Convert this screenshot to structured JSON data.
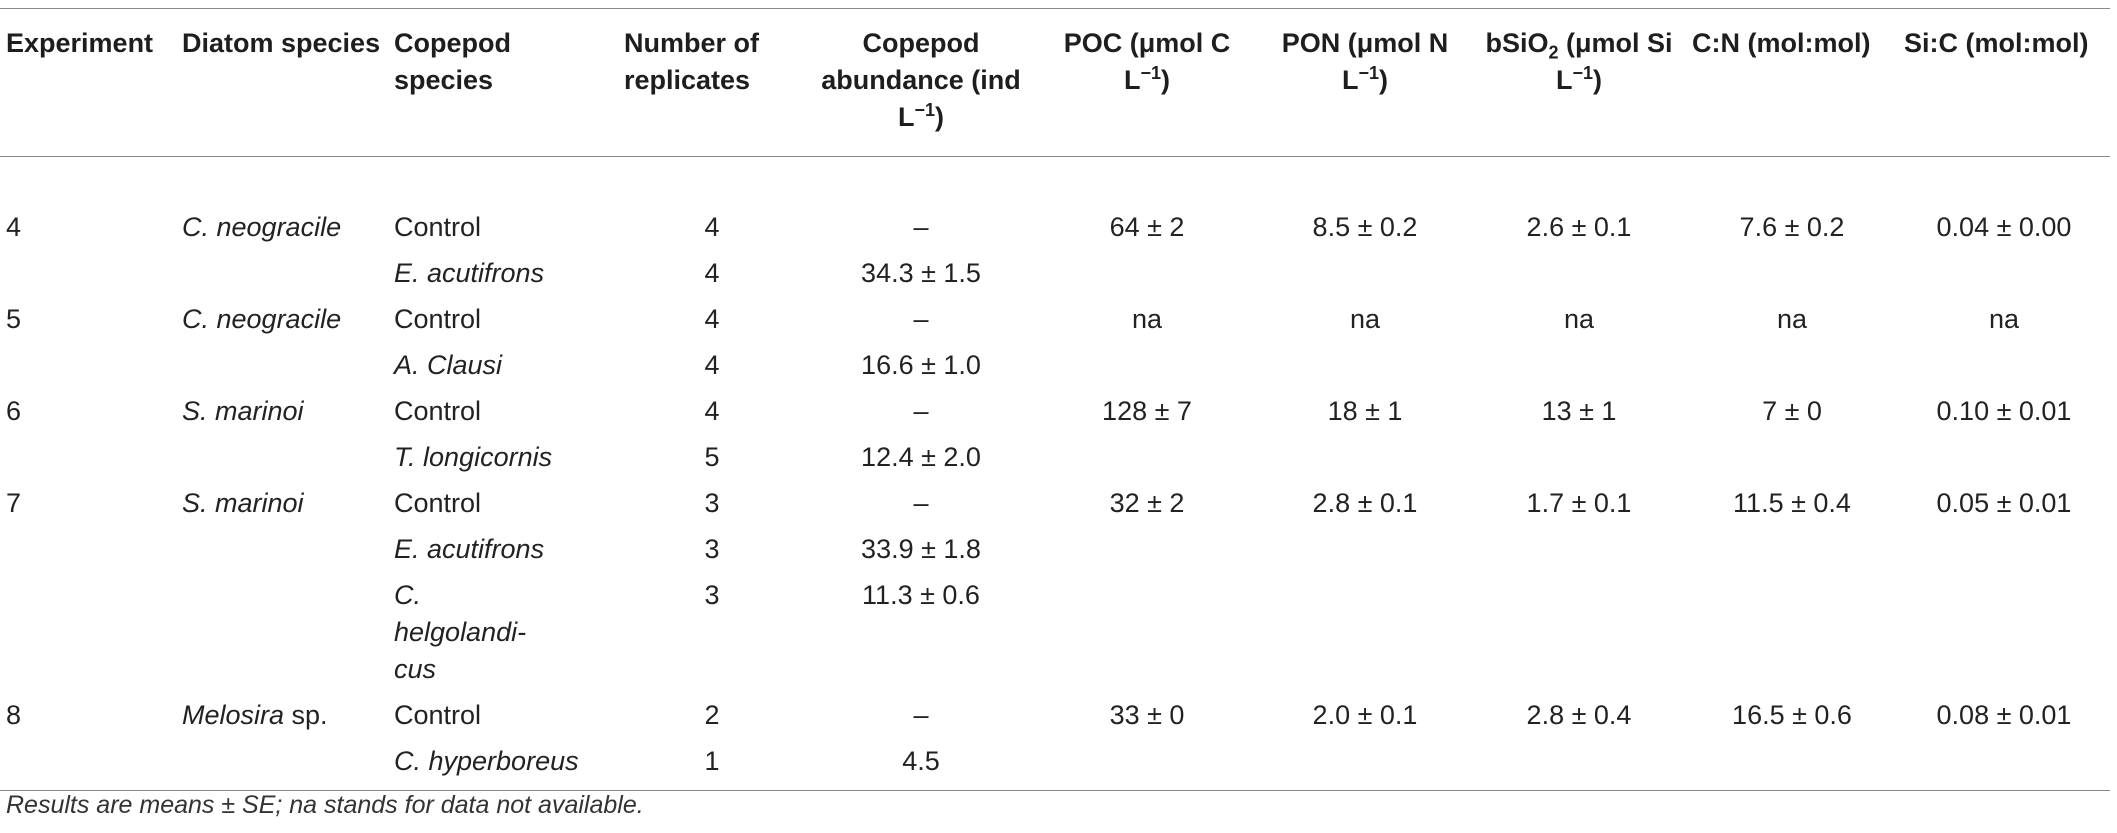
{
  "headers": {
    "experiment": "Experiment",
    "diatom": "Diatom species",
    "copepod": "Copepod species",
    "replicates": "Number of replicates",
    "abundance": "Copepod abundance (ind L",
    "abundance_close": ")",
    "poc": "POC (μmol C L",
    "poc_close": ")",
    "pon": "PON (μmol N L",
    "pon_close": ")",
    "bsio2_pre": "bSiO",
    "bsio2_sub": "2",
    "bsio2_post": " (μmol Si L",
    "bsio2_close": ")",
    "cn": "C:N (mol:mol)",
    "sic": "Si:C (mol:mol)",
    "sup": "−1"
  },
  "rows": [
    {
      "exp": "4",
      "diatom": "C. neogracile",
      "copepod": "Control",
      "n": "4",
      "abund": "–",
      "poc": "64 ± 2",
      "pon": "8.5 ± 0.2",
      "bsio2": "2.6 ± 0.1",
      "cn": "7.6 ± 0.2",
      "sic": "0.04 ± 0.00"
    },
    {
      "exp": "",
      "diatom": "",
      "copepod": "E. acutifrons",
      "n": "4",
      "abund": "34.3 ± 1.5",
      "poc": "",
      "pon": "",
      "bsio2": "",
      "cn": "",
      "sic": ""
    },
    {
      "exp": "5",
      "diatom": "C. neogracile",
      "copepod": "Control",
      "n": "4",
      "abund": "–",
      "poc": "na",
      "pon": "na",
      "bsio2": "na",
      "cn": "na",
      "sic": "na"
    },
    {
      "exp": "",
      "diatom": "",
      "copepod": "A. Clausi",
      "n": "4",
      "abund": "16.6 ± 1.0",
      "poc": "",
      "pon": "",
      "bsio2": "",
      "cn": "",
      "sic": ""
    },
    {
      "exp": "6",
      "diatom": "S. marinoi",
      "copepod": "Control",
      "n": "4",
      "abund": "–",
      "poc": "128 ± 7",
      "pon": "18 ± 1",
      "bsio2": "13 ± 1",
      "cn": "7 ± 0",
      "sic": "0.10 ± 0.01"
    },
    {
      "exp": "",
      "diatom": "",
      "copepod": "T. longicornis",
      "n": "5",
      "abund": "12.4 ± 2.0",
      "poc": "",
      "pon": "",
      "bsio2": "",
      "cn": "",
      "sic": ""
    },
    {
      "exp": "7",
      "diatom": "S. marinoi",
      "copepod": "Control",
      "n": "3",
      "abund": "–",
      "poc": "32 ± 2",
      "pon": "2.8 ± 0.1",
      "bsio2": "1.7 ± 0.1",
      "cn": "11.5 ± 0.4",
      "sic": "0.05 ± 0.01"
    },
    {
      "exp": "",
      "diatom": "",
      "copepod": "E. acutifrons",
      "n": "3",
      "abund": "33.9 ± 1.8",
      "poc": "",
      "pon": "",
      "bsio2": "",
      "cn": "",
      "sic": ""
    },
    {
      "exp": "",
      "diatom": "",
      "copepod": "C. helgolandi-cus",
      "n": "3",
      "abund": "11.3 ± 0.6",
      "poc": "",
      "pon": "",
      "bsio2": "",
      "cn": "",
      "sic": ""
    },
    {
      "exp": "8",
      "diatom": "Melosira",
      "diatom_suffix": " sp.",
      "copepod": "Control",
      "n": "2",
      "abund": "–",
      "poc": "33 ± 0",
      "pon": "2.0 ± 0.1",
      "bsio2": "2.8 ± 0.4",
      "cn": "16.5 ± 0.6",
      "sic": "0.08 ± 0.01"
    },
    {
      "exp": "",
      "diatom": "",
      "copepod": "C. hyperboreus",
      "n": "1",
      "abund": "4.5",
      "poc": "",
      "pon": "",
      "bsio2": "",
      "cn": "",
      "sic": ""
    }
  ],
  "footnote": "Results are means ± SE; na stands for data not available."
}
